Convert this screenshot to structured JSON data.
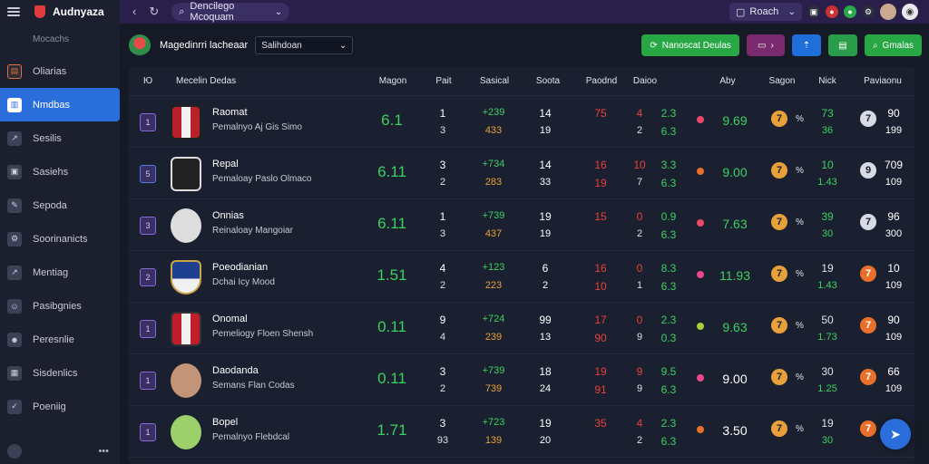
{
  "topbar": {
    "brand": "Audnyaza",
    "search_text": "Dencilego Mcoquam",
    "right_search": "Roach"
  },
  "sidebar": {
    "heading": "Mocachs",
    "items": [
      {
        "label": "Oliarias",
        "icon": "clipboard-icon"
      },
      {
        "label": "Nmdbas",
        "icon": "chart-icon"
      },
      {
        "label": "Sesilis",
        "icon": "arrow-icon"
      },
      {
        "label": "Sasiehs",
        "icon": "box-icon"
      },
      {
        "label": "Sepoda",
        "icon": "pen-icon"
      },
      {
        "label": "Soorinanicts",
        "icon": "settings-icon"
      },
      {
        "label": "Mentiag",
        "icon": "trend-icon"
      },
      {
        "label": "Pasibgnies",
        "icon": "user-icon"
      },
      {
        "label": "Peresnlie",
        "icon": "people-icon"
      },
      {
        "label": "Sisdenlics",
        "icon": "bar-icon"
      },
      {
        "label": "Poeniig",
        "icon": "check-icon"
      }
    ],
    "footer_more": "•••"
  },
  "header": {
    "title": "Magedinrri lacheaar",
    "select_value": "Salihdoan",
    "btn_primary": "Nanoscat Deulas",
    "btn_last": "Gmalas"
  },
  "table": {
    "columns": [
      "Mecelin Dedas",
      "Magon",
      "Pait",
      "Sasical",
      "Soota",
      "Paodnd",
      "Daioo",
      "Aby",
      "Sagon",
      "Nick",
      "Paviaonu"
    ],
    "rows": [
      {
        "rank": "1",
        "name": "Raomat",
        "sub": "Pemalnyo Aj Gis Simo",
        "rating": "6.1",
        "n1a": "1",
        "n1b": "3",
        "oa": "+239",
        "ob": "433",
        "gsa": "14",
        "gsb": "19",
        "r1a": "75",
        "r1b": "",
        "r2a": "4",
        "r2b": "2",
        "g2a": "2.3",
        "g2b": "6.3",
        "dot": "#e84a6a",
        "avg": "9.69",
        "avg_green": true,
        "lka": "73",
        "lkb": "36",
        "lk_white": false,
        "gb": "7",
        "gb_orange": false,
        "ppa": "90",
        "ppb": "199"
      },
      {
        "rank": "5",
        "name": "Repal",
        "sub": "Pemaloay Paslo Olmaco",
        "rating": "6.11",
        "n1a": "3",
        "n1b": "2",
        "oa": "+734",
        "ob": "283",
        "gsa": "14",
        "gsb": "33",
        "r1a": "16",
        "r1b": "19",
        "r2a": "10",
        "r2b": "7",
        "g2a": "3.3",
        "g2b": "6.3",
        "dot": "#e8702a",
        "avg": "9.00",
        "avg_green": true,
        "lka": "10",
        "lkb": "1.43",
        "lk_white": false,
        "gb": "9",
        "gb_orange": false,
        "ppa": "709",
        "ppb": "109"
      },
      {
        "rank": "3",
        "name": "Onnias",
        "sub": "Reinaloay Mangoiar",
        "rating": "6.11",
        "n1a": "1",
        "n1b": "3",
        "oa": "+739",
        "ob": "437",
        "gsa": "19",
        "gsb": "19",
        "r1a": "15",
        "r1b": "",
        "r2a": "0",
        "r2b": "2",
        "g2a": "0.9",
        "g2b": "6.3",
        "dot": "#e84a6a",
        "avg": "7.63",
        "avg_green": true,
        "lka": "39",
        "lkb": "30",
        "lk_white": false,
        "gb": "7",
        "gb_orange": false,
        "ppa": "96",
        "ppb": "300"
      },
      {
        "rank": "2",
        "name": "Poeodianian",
        "sub": "Dchai Icy Mood",
        "rating": "1.51",
        "n1a": "4",
        "n1b": "2",
        "oa": "+123",
        "ob": "223",
        "gsa": "6",
        "gsb": "2",
        "r1a": "16",
        "r1b": "10",
        "r2a": "0",
        "r2b": "1",
        "g2a": "8.3",
        "g2b": "6.3",
        "dot": "#e84a8a",
        "avg": "11.93",
        "avg_green": true,
        "lka": "19",
        "lkb": "1.43",
        "lk_white": true,
        "gb": "7",
        "gb_orange": true,
        "ppa": "10",
        "ppb": "109"
      },
      {
        "rank": "1",
        "name": "Onomal",
        "sub": "Pemeliogy Floen Shensh",
        "rating": "0.11",
        "n1a": "9",
        "n1b": "4",
        "oa": "+724",
        "ob": "239",
        "gsa": "99",
        "gsb": "13",
        "r1a": "17",
        "r1b": "90",
        "r2a": "0",
        "r2b": "9",
        "g2a": "2.3",
        "g2b": "0.3",
        "dot": "#a6d13a",
        "avg": "9.63",
        "avg_green": true,
        "lka": "50",
        "lkb": "1.73",
        "lk_white": true,
        "gb": "7",
        "gb_orange": true,
        "ppa": "90",
        "ppb": "109"
      },
      {
        "rank": "1",
        "name": "Daodanda",
        "sub": "Semans Flan Codas",
        "rating": "0.11",
        "n1a": "3",
        "n1b": "2",
        "oa": "+739",
        "ob": "739",
        "gsa": "18",
        "gsb": "24",
        "r1a": "19",
        "r1b": "91",
        "r2a": "9",
        "r2b": "9",
        "g2a": "9.5",
        "g2b": "6.3",
        "dot": "#e84a8a",
        "avg": "9.00",
        "avg_green": false,
        "lka": "30",
        "lkb": "1.25",
        "lk_white": true,
        "gb": "7",
        "gb_orange": true,
        "ppa": "66",
        "ppb": "109"
      },
      {
        "rank": "1",
        "name": "Bopel",
        "sub": "Pemalnyo Flebdcal",
        "rating": "1.71",
        "n1a": "3",
        "n1b": "93",
        "oa": "+723",
        "ob": "139",
        "gsa": "19",
        "gsb": "20",
        "r1a": "35",
        "r1b": "",
        "r2a": "4",
        "r2b": "2",
        "g2a": "2.3",
        "g2b": "6.3",
        "dot": "#e8702a",
        "avg": "3.50",
        "avg_green": false,
        "lka": "19",
        "lkb": "30",
        "lk_white": true,
        "gb": "7",
        "gb_orange": true,
        "ppa": "",
        "ppb": ""
      }
    ],
    "pct_label": "%"
  }
}
